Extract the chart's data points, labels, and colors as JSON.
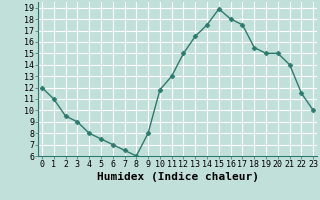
{
  "x": [
    0,
    1,
    2,
    3,
    4,
    5,
    6,
    7,
    8,
    9,
    10,
    11,
    12,
    13,
    14,
    15,
    16,
    17,
    18,
    19,
    20,
    21,
    22,
    23
  ],
  "y": [
    12,
    11,
    9.5,
    9,
    8,
    7.5,
    7,
    6.5,
    6,
    8,
    11.8,
    13,
    15,
    16.5,
    17.5,
    18.9,
    18,
    17.5,
    15.5,
    15,
    15,
    14,
    11.5,
    10
  ],
  "line_color": "#2d7a6e",
  "marker": "D",
  "marker_size": 2.5,
  "bg_color": "#c2e0da",
  "grid_color": "#ffffff",
  "xlabel": "Humidex (Indice chaleur)",
  "ylim": [
    6,
    19.5
  ],
  "xlim": [
    -0.3,
    23.3
  ],
  "yticks": [
    6,
    7,
    8,
    9,
    10,
    11,
    12,
    13,
    14,
    15,
    16,
    17,
    18,
    19
  ],
  "xticks": [
    0,
    1,
    2,
    3,
    4,
    5,
    6,
    7,
    8,
    9,
    10,
    11,
    12,
    13,
    14,
    15,
    16,
    17,
    18,
    19,
    20,
    21,
    22,
    23
  ],
  "tick_fontsize": 6,
  "xlabel_fontsize": 8,
  "linewidth": 1.0
}
